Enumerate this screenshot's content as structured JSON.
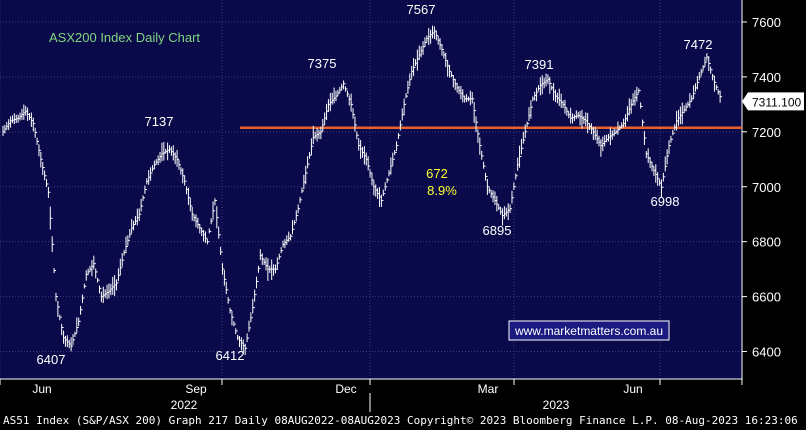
{
  "title": "ASX200 Index Daily Chart",
  "watermark": "www.marketmatters.com.au",
  "last_price_label": "7311.100",
  "footer_text": "AS51 Index (S&P/ASX 200) Graph 217  Daily 08AUG2022-08AUG2023  Copyright© 2023 Bloomberg Finance L.P.  08-Aug-2023 16:23:06",
  "colors": {
    "background": "#0a0a4a",
    "grid": "#3a3a7a",
    "price": "#ffffff",
    "support_line": "#e8602c",
    "title": "#7fd67f",
    "annotation": "#ffff33",
    "watermark_bg": "#1a1a80"
  },
  "chart_data": {
    "type": "line",
    "x_tick_labels": [
      "Jun",
      "Sep",
      "Dec",
      "Mar",
      "Jun"
    ],
    "x_year_labels": [
      "2022",
      "2023"
    ],
    "y_ticks": [
      6400,
      6600,
      6800,
      7000,
      7200,
      7400,
      7600
    ],
    "ylim": [
      6300,
      7680
    ],
    "support_level": 7215,
    "series": [
      {
        "values": [
          7200,
          7240,
          7250,
          7275,
          7230,
          7100,
          6980,
          6600,
          6450,
          6420,
          6510,
          6680,
          6720,
          6600,
          6620,
          6650,
          6760,
          6850,
          6900,
          7020,
          7080,
          7120,
          7137,
          7100,
          7020,
          6900,
          6850,
          6800,
          6950,
          6700,
          6550,
          6450,
          6412,
          6560,
          6750,
          6700,
          6700,
          6790,
          6820,
          6920,
          7050,
          7180,
          7200,
          7300,
          7330,
          7375,
          7300,
          7150,
          7100,
          7000,
          6950,
          7050,
          7150,
          7300,
          7420,
          7480,
          7540,
          7567,
          7500,
          7420,
          7360,
          7320,
          7320,
          7150,
          7000,
          6950,
          6895,
          6920,
          7080,
          7200,
          7320,
          7370,
          7391,
          7330,
          7300,
          7250,
          7260,
          7240,
          7200,
          7150,
          7180,
          7200,
          7230,
          7300,
          7350,
          7120,
          7060,
          6998,
          7150,
          7240,
          7280,
          7320,
          7400,
          7472,
          7380,
          7311
        ]
      }
    ],
    "annotations": [
      {
        "text": "6407",
        "value": 6407
      },
      {
        "text": "7137",
        "value": 7137
      },
      {
        "text": "6412",
        "value": 6412
      },
      {
        "text": "7375",
        "value": 7375
      },
      {
        "text": "7567",
        "value": 7567
      },
      {
        "text": "6895",
        "value": 6895
      },
      {
        "text": "7391",
        "value": 7391
      },
      {
        "text": "6998",
        "value": 6998
      },
      {
        "text": "7472",
        "value": 7472
      },
      {
        "text": "672",
        "value": 672
      },
      {
        "text": "8.9%",
        "value": 8.9
      }
    ]
  }
}
